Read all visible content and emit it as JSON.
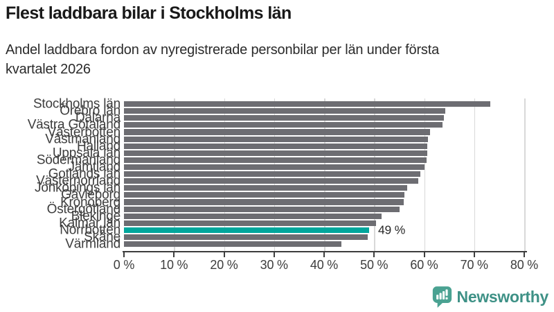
{
  "header": {
    "title": "Flest laddbara bilar i Stockholms län",
    "subtitle_lines": [
      "Andel laddbara fordon av nyregistrerade personbilar per län under första",
      "kvartalet 2026"
    ]
  },
  "chart_data": {
    "type": "bar",
    "orientation": "horizontal",
    "title": "Flest laddbara bilar i Stockholms län",
    "subtitle": "Andel laddbara fordon av nyregistrerade personbilar per län under första kvartalet 2026",
    "categories": [
      "Stockholms län",
      "Örebro län",
      "Dalarna",
      "Västra Götaland",
      "Västerbotten",
      "Västmanland",
      "Halland",
      "Uppsala län",
      "Södermanland",
      "Jämtland",
      "Gotlands län",
      "Västernorrland",
      "Jönköpings län",
      "Gävleborg",
      "Kronoberg",
      "Östergötland",
      "Blekinge",
      "Kalmar län",
      "Norrbotten",
      "Skåne",
      "Värmland"
    ],
    "values": [
      73.2,
      64.2,
      63.9,
      63.7,
      61.2,
      60.7,
      60.6,
      60.6,
      60.5,
      60.0,
      59.2,
      58.8,
      56.6,
      56.1,
      55.9,
      55.1,
      51.5,
      50.4,
      49,
      48.7,
      43.5
    ],
    "unit": "%",
    "xlim": [
      0,
      80
    ],
    "xticks": [
      "0 %",
      "10 %",
      "20 %",
      "30 %",
      "40 %",
      "50 %",
      "60 %",
      "70 %",
      "80 %"
    ],
    "grid": "vertical",
    "highlight_index": 18,
    "annotation": {
      "text": "49 %",
      "target": "Norrbotten"
    },
    "colors": {
      "bar": "#6d6d72",
      "highlight": "#00a69c",
      "axis": "#3d3d3d",
      "grid": "#d8d8d8"
    }
  },
  "footer": {
    "brand": "Newsworthy",
    "brand_color": "#3e9186",
    "logo_icon": "bar-chart-speech-bubble-icon"
  }
}
